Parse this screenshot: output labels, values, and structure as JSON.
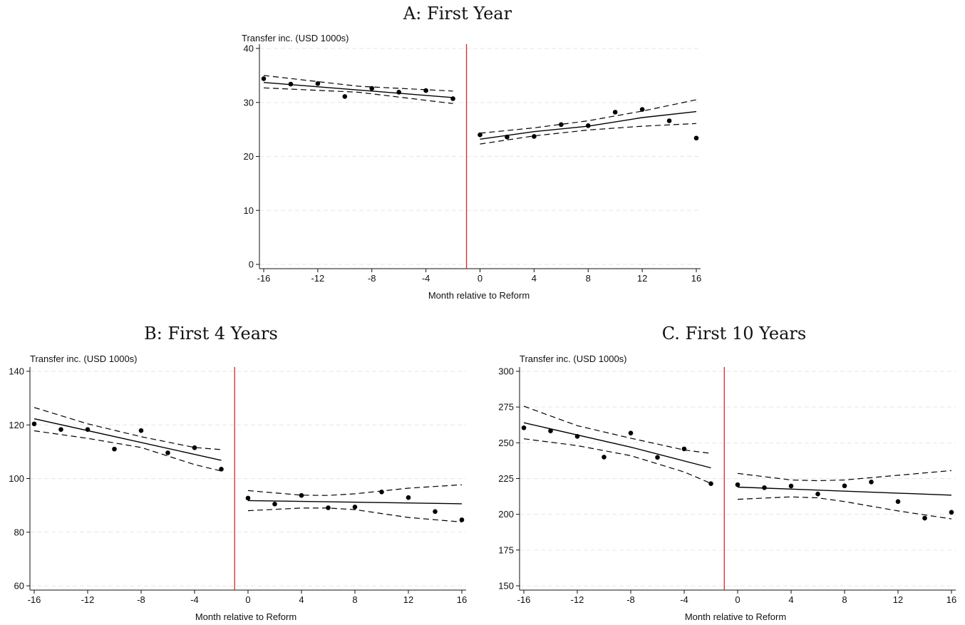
{
  "chart_data": [
    {
      "type": "scatter",
      "title": "A: First Year",
      "xlabel": "Month relative to Reform",
      "ylabel": "Transfer inc. (USD 1000s)",
      "xlim": [
        -16,
        16
      ],
      "ylim": [
        0,
        40
      ],
      "xticks": [
        -16,
        -12,
        -8,
        -4,
        0,
        4,
        8,
        12,
        16
      ],
      "yticks": [
        0,
        10,
        20,
        30,
        40
      ],
      "cutoff": -1,
      "grid": true,
      "series": [
        {
          "role": "points",
          "x": [
            -16,
            -14,
            -12,
            -10,
            -8,
            -6,
            -4,
            -2,
            0,
            2,
            4,
            6,
            8,
            10,
            12,
            14,
            16
          ],
          "y": [
            34.4,
            33.4,
            33.5,
            31.1,
            32.6,
            31.9,
            32.2,
            30.7,
            24.0,
            23.6,
            23.7,
            25.9,
            25.7,
            28.2,
            28.7,
            26.6,
            23.4
          ]
        },
        {
          "role": "fit-pre",
          "x": [
            -16,
            -2
          ],
          "y": [
            33.7,
            30.9
          ]
        },
        {
          "role": "ci-upper-pre",
          "x": [
            -16,
            -9,
            -2
          ],
          "y": [
            35.0,
            33.0,
            32.1
          ]
        },
        {
          "role": "ci-lower-pre",
          "x": [
            -16,
            -9,
            -2
          ],
          "y": [
            32.7,
            31.9,
            29.8
          ]
        },
        {
          "role": "fit-post",
          "x": [
            0,
            4,
            8,
            12,
            16
          ],
          "y": [
            23.2,
            24.6,
            25.6,
            27.2,
            28.3
          ]
        },
        {
          "role": "ci-upper-post",
          "x": [
            0,
            4,
            8,
            12,
            16
          ],
          "y": [
            24.3,
            25.3,
            26.6,
            28.4,
            30.5
          ]
        },
        {
          "role": "ci-lower-post",
          "x": [
            0,
            4,
            8,
            12,
            16
          ],
          "y": [
            22.3,
            23.8,
            24.9,
            25.6,
            26.1
          ]
        }
      ]
    },
    {
      "type": "scatter",
      "title": "B: First 4 Years",
      "xlabel": "Month relative to Reform",
      "ylabel": "Transfer inc. (USD 1000s)",
      "xlim": [
        -16,
        16
      ],
      "ylim": [
        60,
        140
      ],
      "xticks": [
        -16,
        -12,
        -8,
        -4,
        0,
        4,
        8,
        12,
        16
      ],
      "yticks": [
        60,
        80,
        100,
        120,
        140
      ],
      "cutoff": -1,
      "grid": true,
      "series": [
        {
          "role": "points",
          "x": [
            -16,
            -14,
            -12,
            -10,
            -8,
            -6,
            -4,
            -2,
            0,
            2,
            4,
            6,
            8,
            10,
            12,
            14,
            16
          ],
          "y": [
            120.4,
            118.3,
            118.3,
            111.0,
            117.9,
            109.6,
            111.5,
            103.5,
            92.7,
            90.5,
            93.7,
            89.1,
            89.4,
            95.0,
            92.9,
            87.7,
            84.6
          ]
        },
        {
          "role": "fit-pre",
          "x": [
            -16,
            -2
          ],
          "y": [
            122.3,
            106.8
          ]
        },
        {
          "role": "ci-upper-pre",
          "x": [
            -16,
            -12,
            -8,
            -4,
            -2
          ],
          "y": [
            126.5,
            120.4,
            115.6,
            111.6,
            110.8
          ]
        },
        {
          "role": "ci-lower-pre",
          "x": [
            -16,
            -12,
            -8,
            -4,
            -2
          ],
          "y": [
            117.8,
            115.0,
            111.6,
            105.2,
            102.8
          ]
        },
        {
          "role": "fit-post",
          "x": [
            0,
            16
          ],
          "y": [
            91.8,
            90.6
          ]
        },
        {
          "role": "ci-upper-post",
          "x": [
            0,
            4,
            6,
            8,
            12,
            16
          ],
          "y": [
            95.5,
            93.8,
            93.7,
            94.3,
            96.4,
            97.7
          ]
        },
        {
          "role": "ci-lower-post",
          "x": [
            0,
            4,
            6,
            8,
            12,
            16
          ],
          "y": [
            88.0,
            89.0,
            89.0,
            88.4,
            85.5,
            83.8
          ]
        }
      ]
    },
    {
      "type": "scatter",
      "title": "C. First 10 Years",
      "xlabel": "Month relative to Reform",
      "ylabel": "Transfer inc. (USD 1000s)",
      "xlim": [
        -16,
        16
      ],
      "ylim": [
        150,
        300
      ],
      "xticks": [
        -16,
        -12,
        -8,
        -4,
        0,
        4,
        8,
        12,
        16
      ],
      "yticks": [
        150,
        175,
        200,
        225,
        250,
        275,
        300
      ],
      "cutoff": -1,
      "grid": true,
      "series": [
        {
          "role": "points",
          "x": [
            -16,
            -14,
            -12,
            -10,
            -8,
            -6,
            -4,
            -2,
            0,
            2,
            4,
            6,
            8,
            10,
            12,
            14,
            16
          ],
          "y": [
            260.5,
            258.3,
            254.5,
            240.0,
            256.8,
            239.8,
            245.7,
            221.4,
            220.7,
            218.6,
            219.8,
            214.2,
            219.9,
            222.6,
            208.9,
            197.3,
            201.4
          ]
        },
        {
          "role": "fit-pre",
          "x": [
            -16,
            -8,
            -2
          ],
          "y": [
            264.0,
            247.0,
            232.5
          ]
        },
        {
          "role": "ci-upper-pre",
          "x": [
            -16,
            -12,
            -8,
            -4,
            -2
          ],
          "y": [
            275.6,
            262.0,
            253.2,
            245.0,
            242.6
          ]
        },
        {
          "role": "ci-lower-pre",
          "x": [
            -16,
            -12,
            -8,
            -4,
            -2
          ],
          "y": [
            252.8,
            248.0,
            241.0,
            229.6,
            221.6
          ]
        },
        {
          "role": "fit-post",
          "x": [
            0,
            16
          ],
          "y": [
            219.0,
            213.4
          ]
        },
        {
          "role": "ci-upper-post",
          "x": [
            0,
            4,
            6,
            8,
            12,
            16
          ],
          "y": [
            228.6,
            224.0,
            223.5,
            224.0,
            227.3,
            230.6
          ]
        },
        {
          "role": "ci-lower-post",
          "x": [
            0,
            4,
            6,
            8,
            12,
            16
          ],
          "y": [
            210.5,
            212.2,
            211.5,
            208.9,
            202.4,
            196.8
          ]
        }
      ]
    }
  ]
}
